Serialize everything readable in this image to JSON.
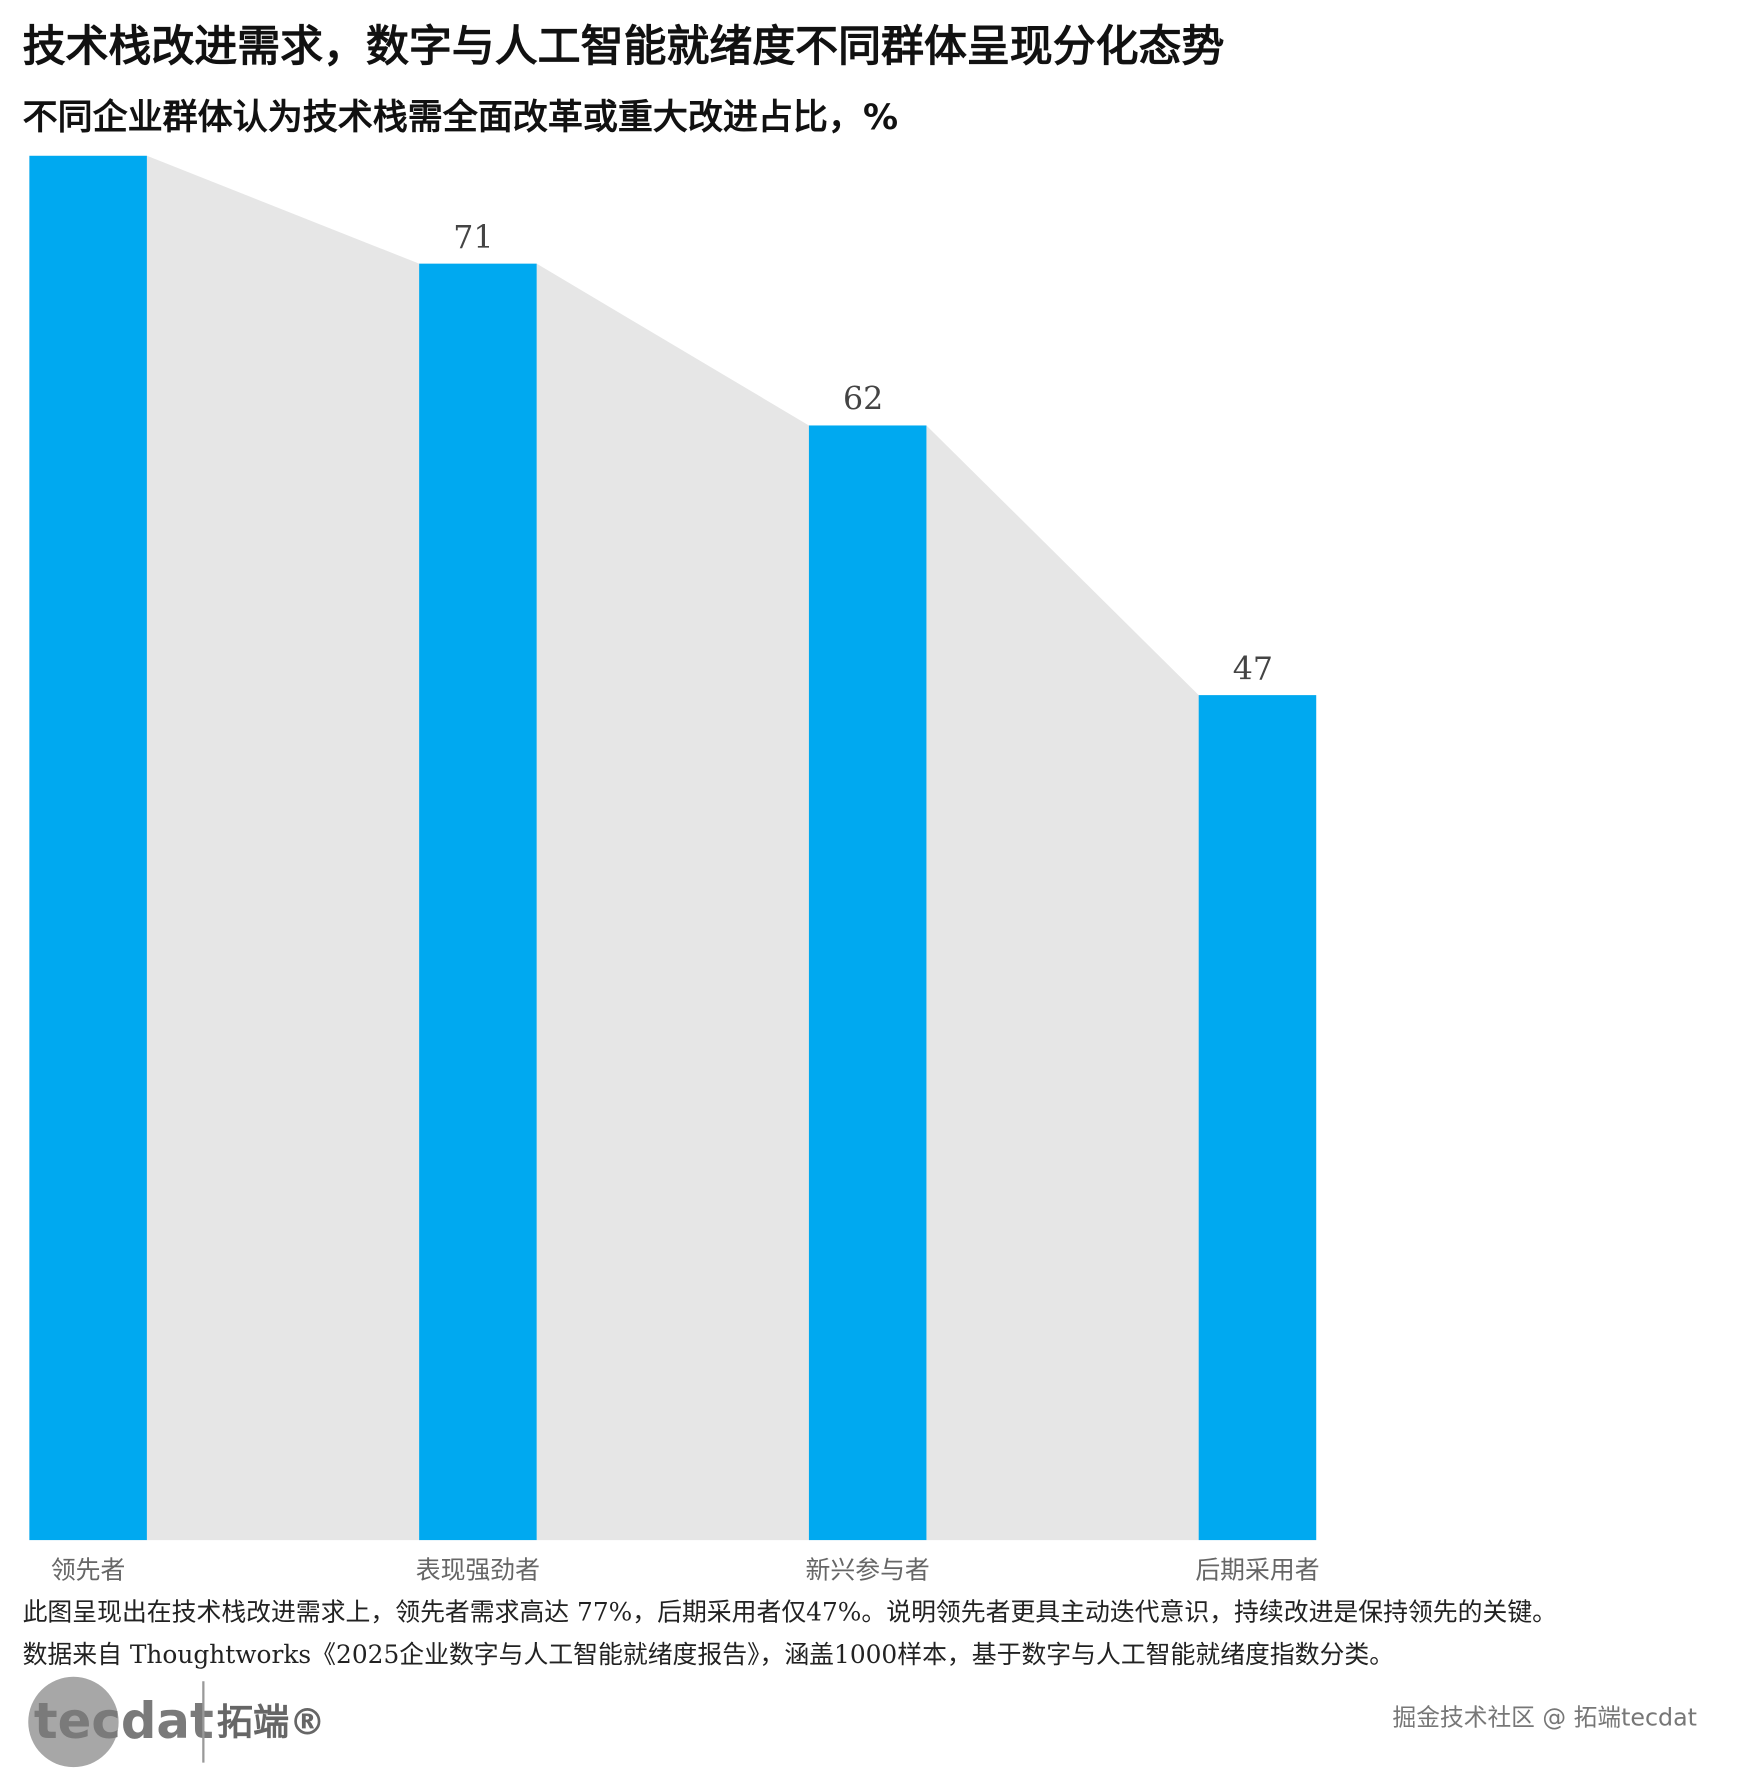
{
  "chart_data": {
    "type": "bar",
    "title": "技术栈改进需求，数字与人工智能就绪度不同群体呈现分化态势",
    "subtitle": "不同企业群体认为技术栈需全面改革或重大改进占比，%",
    "categories": [
      "领先者",
      "表现强劲者",
      "新兴参与者",
      "后期采用者"
    ],
    "values": [
      77,
      71,
      62,
      47
    ],
    "value_labels": [
      null,
      "71",
      "62",
      "47"
    ],
    "color": "#00a9f0",
    "area_color": "#e6e6e6",
    "ylim": [
      0,
      80
    ],
    "grid": false
  },
  "notes": [
    "此图呈现出在技术栈改进需求上，领先者需求高达  77%，后期采用者仅47%。说明领先者更具主动迭代意识，持续改进是保持领先的关键。",
    "数据来自  Thoughtworks《2025企业数字与人工智能就绪度报告》，涵盖1000样本，基于数字与人工智能就绪度指数分类。"
  ],
  "logo": {
    "text": "tecdat",
    "brand": "拓端®"
  },
  "watermark": "掘金技术社区 @ 拓端tecdat"
}
